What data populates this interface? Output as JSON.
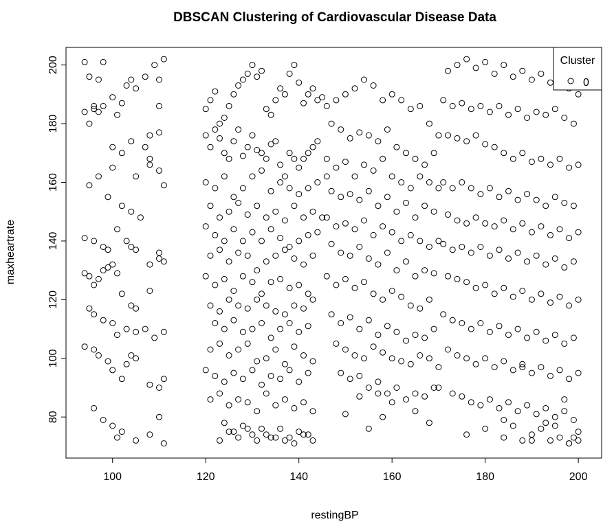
{
  "chart_data": {
    "type": "scatter",
    "title": "DBSCAN Clustering of Cardiovascular Disease Data",
    "xlabel": "restingBP",
    "ylabel": "maxheartrate",
    "xlim": [
      90,
      205
    ],
    "ylim": [
      66,
      206
    ],
    "xticks": [
      100,
      120,
      140,
      160,
      180,
      200
    ],
    "yticks": [
      80,
      100,
      120,
      140,
      160,
      180,
      200
    ],
    "grid": false,
    "marker": "open-circle",
    "point_color": "#000000",
    "legend": {
      "title": "Cluster",
      "placement": "top-right",
      "entries": [
        {
          "label": "0"
        }
      ]
    },
    "x": [
      94,
      95,
      96,
      95,
      97,
      98,
      100,
      101,
      102,
      103,
      104,
      105,
      107,
      108,
      110,
      111,
      110,
      109,
      94,
      96,
      97,
      98,
      100,
      102,
      104,
      105,
      107,
      108,
      110,
      111,
      95,
      97,
      99,
      100,
      102,
      104,
      106,
      108,
      110,
      94,
      96,
      98,
      99,
      101,
      103,
      104,
      105,
      108,
      110,
      111,
      94,
      95,
      96,
      97,
      98,
      99,
      100,
      101,
      102,
      104,
      105,
      108,
      110,
      95,
      96,
      98,
      100,
      101,
      103,
      105,
      107,
      109,
      111,
      94,
      96,
      97,
      99,
      100,
      102,
      103,
      104,
      105,
      108,
      110,
      111,
      96,
      98,
      100,
      101,
      102,
      105,
      108,
      110,
      111,
      120,
      121,
      122,
      123,
      124,
      125,
      126,
      127,
      128,
      129,
      130,
      131,
      132,
      133,
      134,
      135,
      136,
      137,
      138,
      139,
      140,
      141,
      142,
      143,
      144,
      145,
      120,
      121,
      122,
      123,
      124,
      125,
      126,
      127,
      128,
      129,
      130,
      131,
      132,
      133,
      134,
      135,
      136,
      137,
      138,
      139,
      140,
      141,
      142,
      143,
      144,
      120,
      122,
      124,
      126,
      128,
      130,
      132,
      134,
      136,
      138,
      140,
      142,
      144,
      146,
      121,
      123,
      125,
      127,
      129,
      131,
      133,
      135,
      137,
      139,
      141,
      143,
      145,
      120,
      122,
      124,
      126,
      128,
      130,
      132,
      134,
      136,
      138,
      140,
      142,
      144,
      121,
      123,
      125,
      127,
      129,
      131,
      133,
      135,
      137,
      139,
      141,
      143,
      120,
      122,
      124,
      126,
      128,
      130,
      132,
      134,
      136,
      138,
      140,
      142,
      121,
      123,
      125,
      127,
      129,
      131,
      133,
      135,
      137,
      139,
      141,
      143,
      122,
      124,
      126,
      128,
      130,
      132,
      134,
      136,
      138,
      140,
      142,
      121,
      123,
      125,
      127,
      129,
      131,
      133,
      135,
      137,
      139,
      141,
      143,
      120,
      122,
      124,
      126,
      128,
      130,
      132,
      134,
      136,
      138,
      140,
      142,
      121,
      123,
      125,
      127,
      129,
      131,
      133,
      135,
      137,
      139,
      141,
      143,
      124,
      126,
      128,
      130,
      132,
      134,
      136,
      138,
      140,
      142,
      123,
      125,
      127,
      129,
      131,
      133,
      135,
      137,
      139,
      141,
      143,
      146,
      148,
      150,
      152,
      154,
      156,
      158,
      160,
      162,
      164,
      166,
      168,
      170,
      147,
      149,
      151,
      153,
      155,
      157,
      159,
      161,
      163,
      165,
      167,
      169,
      146,
      148,
      150,
      152,
      154,
      156,
      158,
      160,
      162,
      164,
      166,
      168,
      170,
      147,
      149,
      151,
      153,
      155,
      157,
      159,
      161,
      163,
      165,
      167,
      169,
      146,
      148,
      150,
      152,
      154,
      156,
      158,
      160,
      162,
      164,
      166,
      168,
      170,
      147,
      149,
      151,
      153,
      155,
      157,
      159,
      161,
      163,
      165,
      167,
      169,
      146,
      148,
      150,
      152,
      154,
      156,
      158,
      160,
      162,
      164,
      166,
      168,
      147,
      149,
      151,
      153,
      155,
      157,
      159,
      161,
      163,
      165,
      167,
      169,
      148,
      150,
      152,
      154,
      156,
      158,
      160,
      162,
      164,
      166,
      168,
      170,
      149,
      151,
      153,
      155,
      157,
      159,
      161,
      163,
      165,
      167,
      169,
      150,
      153,
      155,
      157,
      158,
      160,
      165,
      168,
      170,
      172,
      174,
      176,
      178,
      180,
      182,
      184,
      186,
      188,
      190,
      192,
      194,
      196,
      198,
      200,
      171,
      173,
      175,
      177,
      179,
      181,
      183,
      185,
      187,
      189,
      191,
      193,
      195,
      197,
      199,
      172,
      174,
      176,
      178,
      180,
      182,
      184,
      186,
      188,
      190,
      192,
      194,
      196,
      198,
      200,
      171,
      173,
      175,
      177,
      179,
      181,
      183,
      185,
      187,
      189,
      191,
      193,
      195,
      197,
      199,
      172,
      174,
      176,
      178,
      180,
      182,
      184,
      186,
      188,
      190,
      192,
      194,
      196,
      198,
      200,
      171,
      173,
      175,
      177,
      179,
      181,
      183,
      185,
      187,
      189,
      191,
      193,
      195,
      197,
      199,
      172,
      174,
      176,
      178,
      180,
      182,
      184,
      186,
      188,
      190,
      192,
      194,
      196,
      198,
      200,
      171,
      173,
      175,
      177,
      179,
      181,
      183,
      185,
      187,
      189,
      191,
      193,
      195,
      197,
      199,
      172,
      174,
      176,
      178,
      180,
      182,
      184,
      186,
      188,
      190,
      192,
      194,
      196,
      198,
      200,
      173,
      175,
      177,
      179,
      181,
      183,
      185,
      187,
      189,
      191,
      193,
      195,
      197,
      199,
      176,
      180,
      184,
      186,
      188,
      190,
      192,
      194,
      196,
      198,
      200,
      184,
      188,
      190,
      193,
      195,
      197,
      198,
      199,
      200
    ],
    "y": [
      201,
      196,
      186,
      180,
      195,
      201,
      189,
      183,
      187,
      193,
      195,
      192,
      196,
      176,
      186,
      202,
      195,
      200,
      184,
      185,
      184,
      186,
      172,
      170,
      174,
      162,
      172,
      168,
      177,
      159,
      159,
      162,
      155,
      165,
      152,
      150,
      148,
      166,
      164,
      141,
      140,
      138,
      137,
      144,
      140,
      138,
      137,
      132,
      134,
      133,
      129,
      128,
      125,
      127,
      130,
      131,
      132,
      129,
      122,
      118,
      117,
      123,
      136,
      117,
      115,
      113,
      112,
      108,
      110,
      109,
      110,
      107,
      109,
      104,
      103,
      101,
      99,
      96,
      93,
      98,
      101,
      100,
      91,
      90,
      93,
      83,
      79,
      77,
      73,
      75,
      72,
      74,
      80,
      71,
      185,
      188,
      191,
      180,
      182,
      186,
      190,
      193,
      195,
      197,
      200,
      196,
      198,
      185,
      183,
      188,
      192,
      190,
      197,
      200,
      194,
      187,
      190,
      192,
      188,
      189,
      176,
      172,
      178,
      175,
      170,
      168,
      174,
      178,
      169,
      172,
      176,
      171,
      170,
      168,
      173,
      174,
      166,
      162,
      170,
      168,
      165,
      168,
      170,
      172,
      174,
      160,
      158,
      162,
      155,
      158,
      162,
      164,
      157,
      160,
      158,
      156,
      158,
      160,
      162,
      152,
      148,
      150,
      153,
      149,
      152,
      148,
      150,
      147,
      152,
      148,
      150,
      148,
      145,
      142,
      140,
      144,
      140,
      143,
      140,
      144,
      141,
      138,
      140,
      142,
      143,
      135,
      137,
      133,
      136,
      135,
      130,
      133,
      135,
      137,
      134,
      132,
      135,
      128,
      125,
      127,
      123,
      128,
      126,
      122,
      126,
      127,
      124,
      125,
      122,
      118,
      116,
      120,
      118,
      117,
      120,
      118,
      116,
      115,
      118,
      117,
      120,
      112,
      110,
      113,
      109,
      110,
      112,
      107,
      110,
      112,
      109,
      111,
      103,
      105,
      101,
      103,
      105,
      99,
      100,
      103,
      98,
      104,
      101,
      99,
      96,
      94,
      92,
      95,
      93,
      96,
      91,
      94,
      93,
      96,
      92,
      95,
      86,
      88,
      84,
      86,
      85,
      82,
      88,
      84,
      86,
      83,
      85,
      82,
      78,
      75,
      77,
      74,
      76,
      73,
      76,
      73,
      75,
      74,
      72,
      75,
      73,
      76,
      72,
      74,
      73,
      72,
      71,
      74,
      72,
      186,
      188,
      190,
      192,
      195,
      193,
      188,
      190,
      188,
      185,
      186,
      180,
      176,
      180,
      178,
      175,
      177,
      176,
      174,
      178,
      172,
      170,
      168,
      166,
      170,
      168,
      165,
      167,
      162,
      166,
      164,
      168,
      162,
      160,
      158,
      162,
      160,
      158,
      157,
      155,
      156,
      154,
      157,
      152,
      155,
      150,
      153,
      148,
      152,
      150,
      148,
      145,
      146,
      144,
      147,
      142,
      145,
      143,
      140,
      142,
      140,
      138,
      140,
      139,
      136,
      135,
      138,
      134,
      132,
      136,
      130,
      133,
      128,
      130,
      129,
      128,
      125,
      127,
      124,
      126,
      122,
      120,
      123,
      121,
      118,
      117,
      120,
      115,
      112,
      114,
      110,
      113,
      108,
      111,
      109,
      106,
      108,
      107,
      110,
      105,
      103,
      101,
      100,
      104,
      102,
      100,
      99,
      98,
      101,
      100,
      97,
      95,
      93,
      94,
      90,
      92,
      88,
      90,
      86,
      88,
      87,
      90,
      81,
      87,
      76,
      88,
      80,
      85,
      82,
      78,
      90,
      198,
      200,
      202,
      199,
      201,
      197,
      200,
      196,
      198,
      195,
      197,
      194,
      195,
      192,
      190,
      188,
      186,
      187,
      185,
      186,
      184,
      186,
      183,
      185,
      182,
      184,
      183,
      185,
      182,
      180,
      176,
      175,
      174,
      176,
      173,
      172,
      170,
      168,
      170,
      167,
      168,
      166,
      168,
      165,
      166,
      160,
      158,
      160,
      158,
      156,
      158,
      155,
      157,
      154,
      156,
      154,
      152,
      155,
      153,
      152,
      149,
      147,
      146,
      148,
      146,
      145,
      147,
      144,
      146,
      143,
      145,
      142,
      144,
      141,
      143,
      139,
      137,
      138,
      136,
      138,
      135,
      137,
      134,
      136,
      133,
      135,
      132,
      134,
      131,
      133,
      128,
      127,
      126,
      124,
      125,
      122,
      124,
      121,
      123,
      120,
      122,
      119,
      121,
      118,
      120,
      115,
      113,
      112,
      110,
      112,
      109,
      111,
      108,
      110,
      107,
      109,
      106,
      108,
      105,
      107,
      103,
      101,
      100,
      98,
      100,
      97,
      99,
      96,
      98,
      95,
      97,
      94,
      96,
      93,
      95,
      88,
      87,
      85,
      84,
      86,
      83,
      85,
      82,
      84,
      81,
      83,
      80,
      82,
      79,
      74,
      76,
      73,
      77,
      72,
      74,
      76,
      72,
      73,
      71,
      75,
      79,
      97,
      72,
      78,
      77,
      86,
      71,
      73,
      72
    ]
  }
}
